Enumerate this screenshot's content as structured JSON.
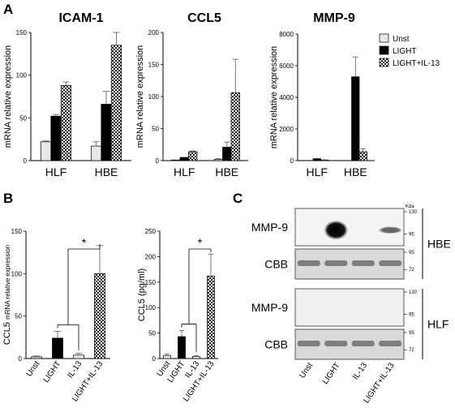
{
  "panel_labels": {
    "a": "A",
    "b": "B",
    "c": "C"
  },
  "legend": [
    "Unst",
    "LIGHT",
    "LIGHT+IL-13"
  ],
  "colors": {
    "Unst": "#e8e8e8",
    "LIGHT": "#000000",
    "LIGHT+IL-13": "checkered"
  },
  "chart_data": [
    {
      "type": "bar",
      "title": "ICAM-1",
      "ylabel": "mRNA relative expression",
      "categories": [
        "HLF",
        "HBE"
      ],
      "ylim": [
        0,
        150
      ],
      "yticks": [
        "0",
        "50",
        "100",
        "150"
      ],
      "series": [
        {
          "name": "Unst",
          "values": [
            22,
            17
          ],
          "errors": [
            1,
            5
          ]
        },
        {
          "name": "LIGHT",
          "values": [
            52,
            66
          ],
          "errors": [
            2,
            15
          ]
        },
        {
          "name": "LIGHT+IL-13",
          "values": [
            88,
            135
          ],
          "errors": [
            4,
            15
          ]
        }
      ]
    },
    {
      "type": "bar",
      "title": "CCL5",
      "ylabel": "mRNA relative expression",
      "categories": [
        "HLF",
        "HBE"
      ],
      "ylim": [
        0,
        200
      ],
      "yticks": [
        "0",
        "50",
        "100",
        "150",
        "200"
      ],
      "series": [
        {
          "name": "Unst",
          "values": [
            1,
            2
          ],
          "errors": [
            0,
            1
          ]
        },
        {
          "name": "LIGHT",
          "values": [
            5,
            21
          ],
          "errors": [
            0,
            8
          ]
        },
        {
          "name": "LIGHT+IL-13",
          "values": [
            14,
            106
          ],
          "errors": [
            1,
            52
          ]
        }
      ]
    },
    {
      "type": "bar",
      "title": "MMP-9",
      "ylabel": "mRNA relative expression",
      "categories": [
        "HLF",
        "HBE"
      ],
      "ylim": [
        0,
        8000
      ],
      "yticks": [
        "0",
        "2000",
        "4000",
        "6000",
        "8000"
      ],
      "series": [
        {
          "name": "Unst",
          "values": [
            8,
            5
          ],
          "errors": [
            0,
            0
          ]
        },
        {
          "name": "LIGHT",
          "values": [
            120,
            5300
          ],
          "errors": [
            20,
            1250
          ]
        },
        {
          "name": "LIGHT+IL-13",
          "values": [
            40,
            560
          ],
          "errors": [
            10,
            190
          ]
        }
      ]
    },
    {
      "type": "bar",
      "ylabel_main": "CCL5",
      "ylabel_rest": "mRNA relative expression",
      "categories": [
        "Unst",
        "LIGHT",
        "IL-13",
        "LIGHT+IL-13"
      ],
      "ylim": [
        0,
        150
      ],
      "yticks": [
        "0",
        "50",
        "100",
        "150"
      ],
      "values": [
        2,
        24,
        4,
        100
      ],
      "errors": [
        1,
        8,
        2,
        33
      ],
      "significance": "*"
    },
    {
      "type": "bar",
      "ylabel": "CCL5 (pg/ml)",
      "categories": [
        "Unst",
        "LIGHT",
        "IL-13",
        "LIGHT+IL-13"
      ],
      "ylim": [
        0,
        250
      ],
      "yticks": [
        "0",
        "50",
        "100",
        "150",
        "200",
        "250"
      ],
      "values": [
        6,
        43,
        4,
        162
      ],
      "errors": [
        3,
        12,
        2,
        43
      ],
      "significance": "*"
    }
  ],
  "blot": {
    "kda_label": "Kda",
    "groups": [
      {
        "cell": "HBE",
        "rows": [
          {
            "label": "MMP-9",
            "markers": [
              "130",
              "95"
            ]
          },
          {
            "label": "CBB",
            "markers": [
              "95",
              "72"
            ]
          }
        ]
      },
      {
        "cell": "HLF",
        "rows": [
          {
            "label": "MMP-9",
            "markers": [
              "130",
              "95"
            ]
          },
          {
            "label": "CBB",
            "markers": [
              "95",
              "72"
            ]
          }
        ]
      }
    ],
    "lanes": [
      "Unst",
      "LIGHT",
      "IL-13",
      "LIGHT+IL-13"
    ],
    "mmp9_hbe_intensity": [
      0.0,
      1.0,
      0.0,
      0.6
    ]
  }
}
